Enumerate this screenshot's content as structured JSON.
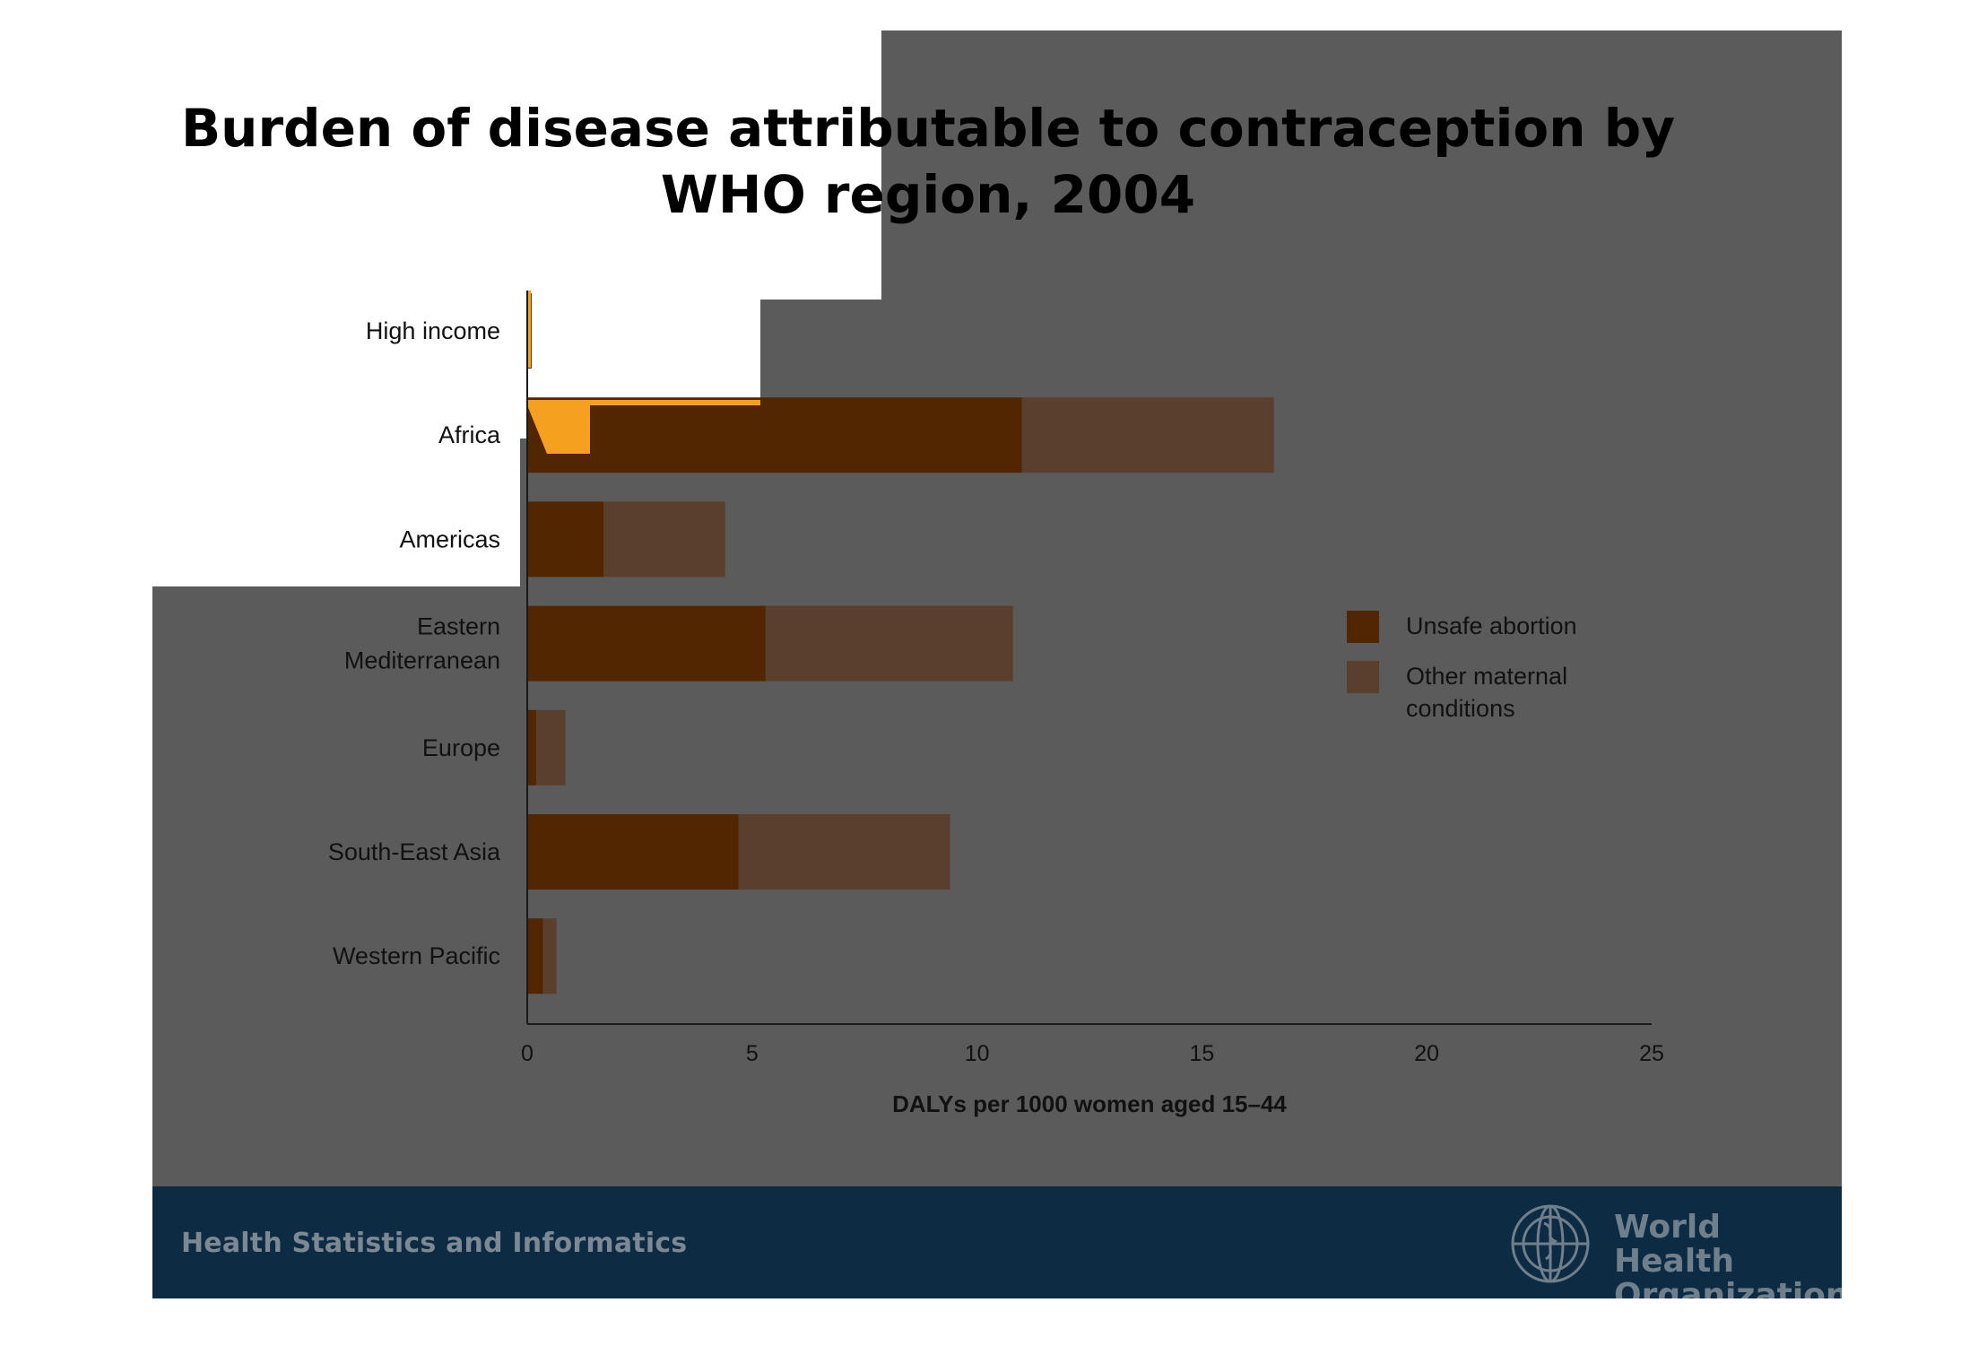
{
  "slide": {
    "title_line1": "Burden of disease attributable to contraception by",
    "title_line2": "WHO region, 2004",
    "footer_text": "Health Statistics and Informatics",
    "org_line1": "World Health",
    "org_line2": "Organization"
  },
  "colors": {
    "overlay_grey": "#5b5b5b",
    "unsafe_abortion": "#512600",
    "other_maternal": "#5a3f2c",
    "highlight_orange": "#f5a11f",
    "footer_navy": "#0d2b42"
  },
  "chart_data": {
    "type": "bar",
    "orientation": "horizontal",
    "stacked": true,
    "title": "Burden of disease attributable to contraception by WHO region, 2004",
    "xlabel": "DALYs per 1000 women aged 15–44",
    "ylabel": "",
    "xlim": [
      0,
      25
    ],
    "xticks": [
      0,
      5,
      10,
      15,
      20,
      25
    ],
    "categories": [
      [
        "High income"
      ],
      [
        "Africa"
      ],
      [
        "Americas"
      ],
      [
        "Eastern",
        "Mediterranean"
      ],
      [
        "Europe"
      ],
      [
        "South-East Asia"
      ],
      [
        "Western Pacific"
      ]
    ],
    "series": [
      {
        "name": "Unsafe abortion",
        "values": [
          0.05,
          11.0,
          1.7,
          5.3,
          0.2,
          4.7,
          0.35
        ]
      },
      {
        "name": "Other maternal conditions",
        "values": [
          0.05,
          5.6,
          2.7,
          5.5,
          0.65,
          4.7,
          0.3
        ]
      }
    ],
    "legend": {
      "position": "right",
      "entries": [
        [
          "Unsafe abortion"
        ],
        [
          "Other maternal",
          "conditions"
        ]
      ]
    },
    "grid": false
  }
}
